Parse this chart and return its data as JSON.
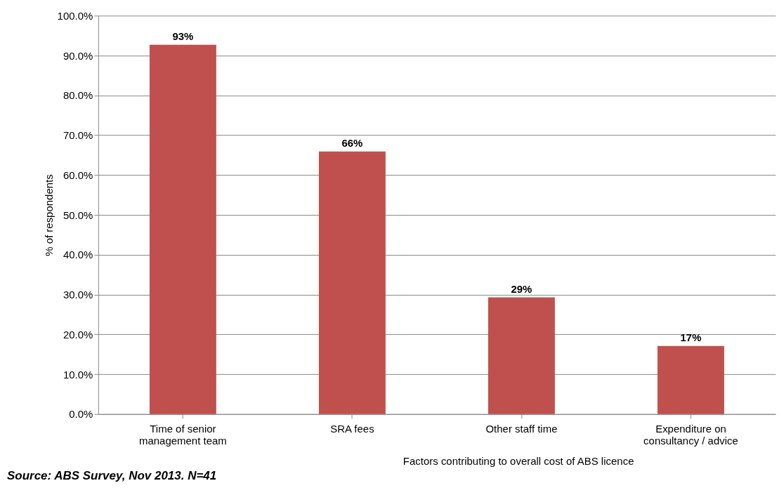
{
  "chart_data": {
    "type": "bar",
    "categories": [
      "Time of senior management team",
      "SRA fees",
      "Other staff time",
      "Expenditure on consultancy / advice"
    ],
    "values": [
      92.7,
      65.9,
      29.3,
      17.1
    ],
    "value_labels": [
      "93%",
      "66%",
      "29%",
      "17%"
    ],
    "color": "#c0504d",
    "xlabel": "Factors contributing to overall cost of ABS licence",
    "ylabel": "% of respondents",
    "ylim": [
      0,
      100
    ],
    "yticks": [
      {
        "value": 0,
        "label": "0.0%"
      },
      {
        "value": 10,
        "label": "10.0%"
      },
      {
        "value": 20,
        "label": "20.0%"
      },
      {
        "value": 30,
        "label": "30.0%"
      },
      {
        "value": 40,
        "label": "40.0%"
      },
      {
        "value": 50,
        "label": "50.0%"
      },
      {
        "value": 60,
        "label": "60.0%"
      },
      {
        "value": 70,
        "label": "70.0%"
      },
      {
        "value": 80,
        "label": "80.0%"
      },
      {
        "value": 90,
        "label": "90.0%"
      },
      {
        "value": 100,
        "label": "100.0%"
      }
    ],
    "grid": "y",
    "annotations": [
      "Source: ABS Survey, Nov 2013. N=41"
    ]
  }
}
